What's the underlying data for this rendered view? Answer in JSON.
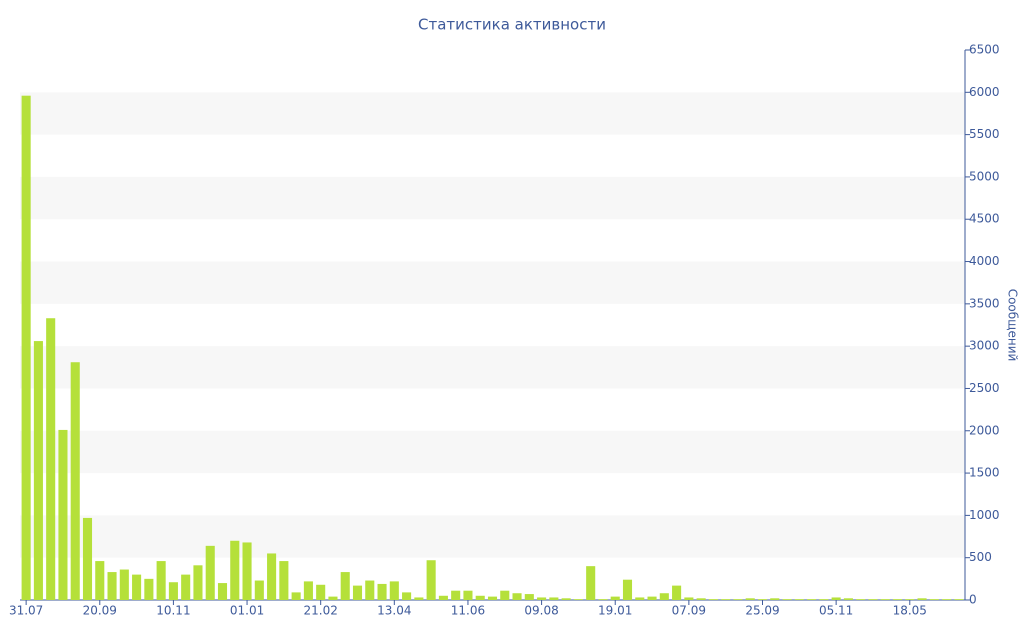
{
  "chart_data": {
    "type": "bar",
    "title": "Статистика активности",
    "y_axis_label": "Сообщений",
    "categories": [
      "31.07",
      null,
      null,
      null,
      null,
      null,
      "20.09",
      null,
      null,
      null,
      null,
      null,
      "10.11",
      null,
      null,
      null,
      null,
      null,
      "01.01",
      null,
      null,
      null,
      null,
      null,
      "21.02",
      null,
      null,
      null,
      null,
      null,
      "13.04",
      null,
      null,
      null,
      null,
      null,
      "11.06",
      null,
      null,
      null,
      null,
      null,
      "09.08",
      null,
      null,
      null,
      null,
      null,
      "19.01",
      null,
      null,
      null,
      null,
      null,
      "07.09",
      null,
      null,
      null,
      null,
      null,
      "25.09",
      null,
      null,
      null,
      null,
      null,
      "05.11",
      null,
      null,
      null,
      null,
      null,
      "18.05",
      null,
      null,
      null,
      null
    ],
    "values": [
      5960,
      3060,
      3330,
      2010,
      2810,
      970,
      460,
      330,
      360,
      300,
      250,
      460,
      210,
      300,
      410,
      640,
      200,
      700,
      680,
      230,
      550,
      460,
      90,
      220,
      180,
      40,
      330,
      170,
      230,
      190,
      220,
      90,
      30,
      470,
      50,
      110,
      110,
      50,
      40,
      110,
      80,
      70,
      30,
      30,
      20,
      10,
      400,
      10,
      40,
      240,
      30,
      40,
      80,
      170,
      30,
      20,
      10,
      10,
      10,
      20,
      10,
      20,
      10,
      10,
      10,
      10,
      30,
      20,
      10,
      10,
      10,
      10,
      10,
      20,
      10,
      10,
      10
    ],
    "color": "#b5e03a",
    "ylim": [
      0,
      6500
    ],
    "yticks": [
      0,
      500,
      1000,
      1500,
      2000,
      2500,
      3000,
      3500,
      4000,
      4500,
      5000,
      5500,
      6000,
      6500
    ],
    "y_axis_side": "right",
    "banded_grid": true
  }
}
